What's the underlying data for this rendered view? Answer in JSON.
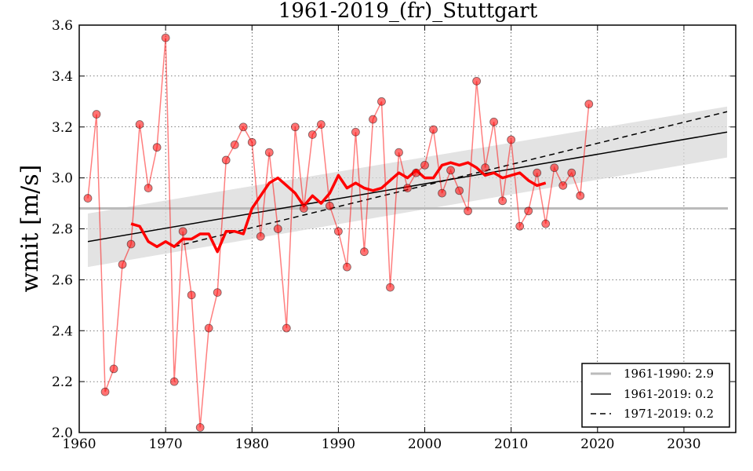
{
  "chart_data": {
    "type": "line",
    "title": "1961-2019_(fr)_Stuttgart",
    "xlabel": "",
    "ylabel": "wmit [m/s]",
    "xlim": [
      1960,
      2036
    ],
    "ylim": [
      2.0,
      3.6
    ],
    "xticks": [
      1960,
      1970,
      1980,
      1990,
      2000,
      2010,
      2020,
      2030
    ],
    "yticks": [
      "2.0",
      "2.2",
      "2.4",
      "2.6",
      "2.8",
      "3.0",
      "3.2",
      "3.4",
      "3.6"
    ],
    "grid": true,
    "legend_position": "bottom-right",
    "colors": {
      "points": "#ff0000",
      "running_mean": "#ff0000",
      "baseline": "#bbbbbb",
      "trend": "#000000",
      "band": "#d9d9d9"
    },
    "series": [
      {
        "name": "annual",
        "x": [
          1961,
          1962,
          1963,
          1964,
          1965,
          1966,
          1967,
          1968,
          1969,
          1970,
          1971,
          1972,
          1973,
          1974,
          1975,
          1976,
          1977,
          1978,
          1979,
          1980,
          1981,
          1982,
          1983,
          1984,
          1985,
          1986,
          1987,
          1988,
          1989,
          1990,
          1991,
          1992,
          1993,
          1994,
          1995,
          1996,
          1997,
          1998,
          1999,
          2000,
          2001,
          2002,
          2003,
          2004,
          2005,
          2006,
          2007,
          2008,
          2009,
          2010,
          2011,
          2012,
          2013,
          2014,
          2015,
          2016,
          2017,
          2018,
          2019
        ],
        "values": [
          2.92,
          3.25,
          2.16,
          2.25,
          2.66,
          2.74,
          3.21,
          2.96,
          3.12,
          3.55,
          2.2,
          2.79,
          2.54,
          2.02,
          2.41,
          2.55,
          3.07,
          3.13,
          3.2,
          3.14,
          2.77,
          3.1,
          2.8,
          2.41,
          3.2,
          2.88,
          3.17,
          3.21,
          2.89,
          2.79,
          2.65,
          3.18,
          2.71,
          3.23,
          3.3,
          2.57,
          3.1,
          2.96,
          3.02,
          3.05,
          3.19,
          2.94,
          3.03,
          2.95,
          2.87,
          3.38,
          3.04,
          3.22,
          2.91,
          3.15,
          2.81,
          2.87,
          3.02,
          2.82,
          3.04,
          2.97,
          3.02,
          2.93,
          3.29
        ]
      },
      {
        "name": "running_mean",
        "x": [
          1966,
          1967,
          1968,
          1969,
          1970,
          1971,
          1972,
          1973,
          1974,
          1975,
          1976,
          1977,
          1978,
          1979,
          1980,
          1981,
          1982,
          1983,
          1984,
          1985,
          1986,
          1987,
          1988,
          1989,
          1990,
          1991,
          1992,
          1993,
          1994,
          1995,
          1996,
          1997,
          1998,
          1999,
          2000,
          2001,
          2002,
          2003,
          2004,
          2005,
          2006,
          2007,
          2008,
          2009,
          2010,
          2011,
          2012,
          2013,
          2014
        ],
        "values": [
          2.82,
          2.81,
          2.75,
          2.73,
          2.75,
          2.73,
          2.76,
          2.76,
          2.78,
          2.78,
          2.71,
          2.79,
          2.79,
          2.78,
          2.88,
          2.93,
          2.98,
          3.0,
          2.97,
          2.94,
          2.89,
          2.93,
          2.9,
          2.94,
          3.01,
          2.96,
          2.98,
          2.96,
          2.95,
          2.96,
          2.99,
          3.02,
          3.0,
          3.03,
          3.0,
          3.0,
          3.05,
          3.06,
          3.05,
          3.06,
          3.04,
          3.01,
          3.02,
          3.0,
          3.01,
          3.02,
          2.99,
          2.97,
          2.98
        ]
      },
      {
        "name": "1961-1990: 2.9",
        "type": "hline",
        "value": 2.88
      },
      {
        "name": "1961-2019: 0.2",
        "type": "trend",
        "x": [
          1961,
          2035
        ],
        "values": [
          2.75,
          3.18
        ],
        "band_lower": [
          2.65,
          3.08
        ],
        "band_upper": [
          2.86,
          3.28
        ]
      },
      {
        "name": "1971-2019: 0.2",
        "type": "trend-dashed",
        "x": [
          1971,
          2035
        ],
        "values": [
          2.73,
          3.26
        ]
      }
    ],
    "legend": [
      "1961-1990: 2.9",
      "1961-2019: 0.2",
      "1971-2019: 0.2"
    ]
  }
}
